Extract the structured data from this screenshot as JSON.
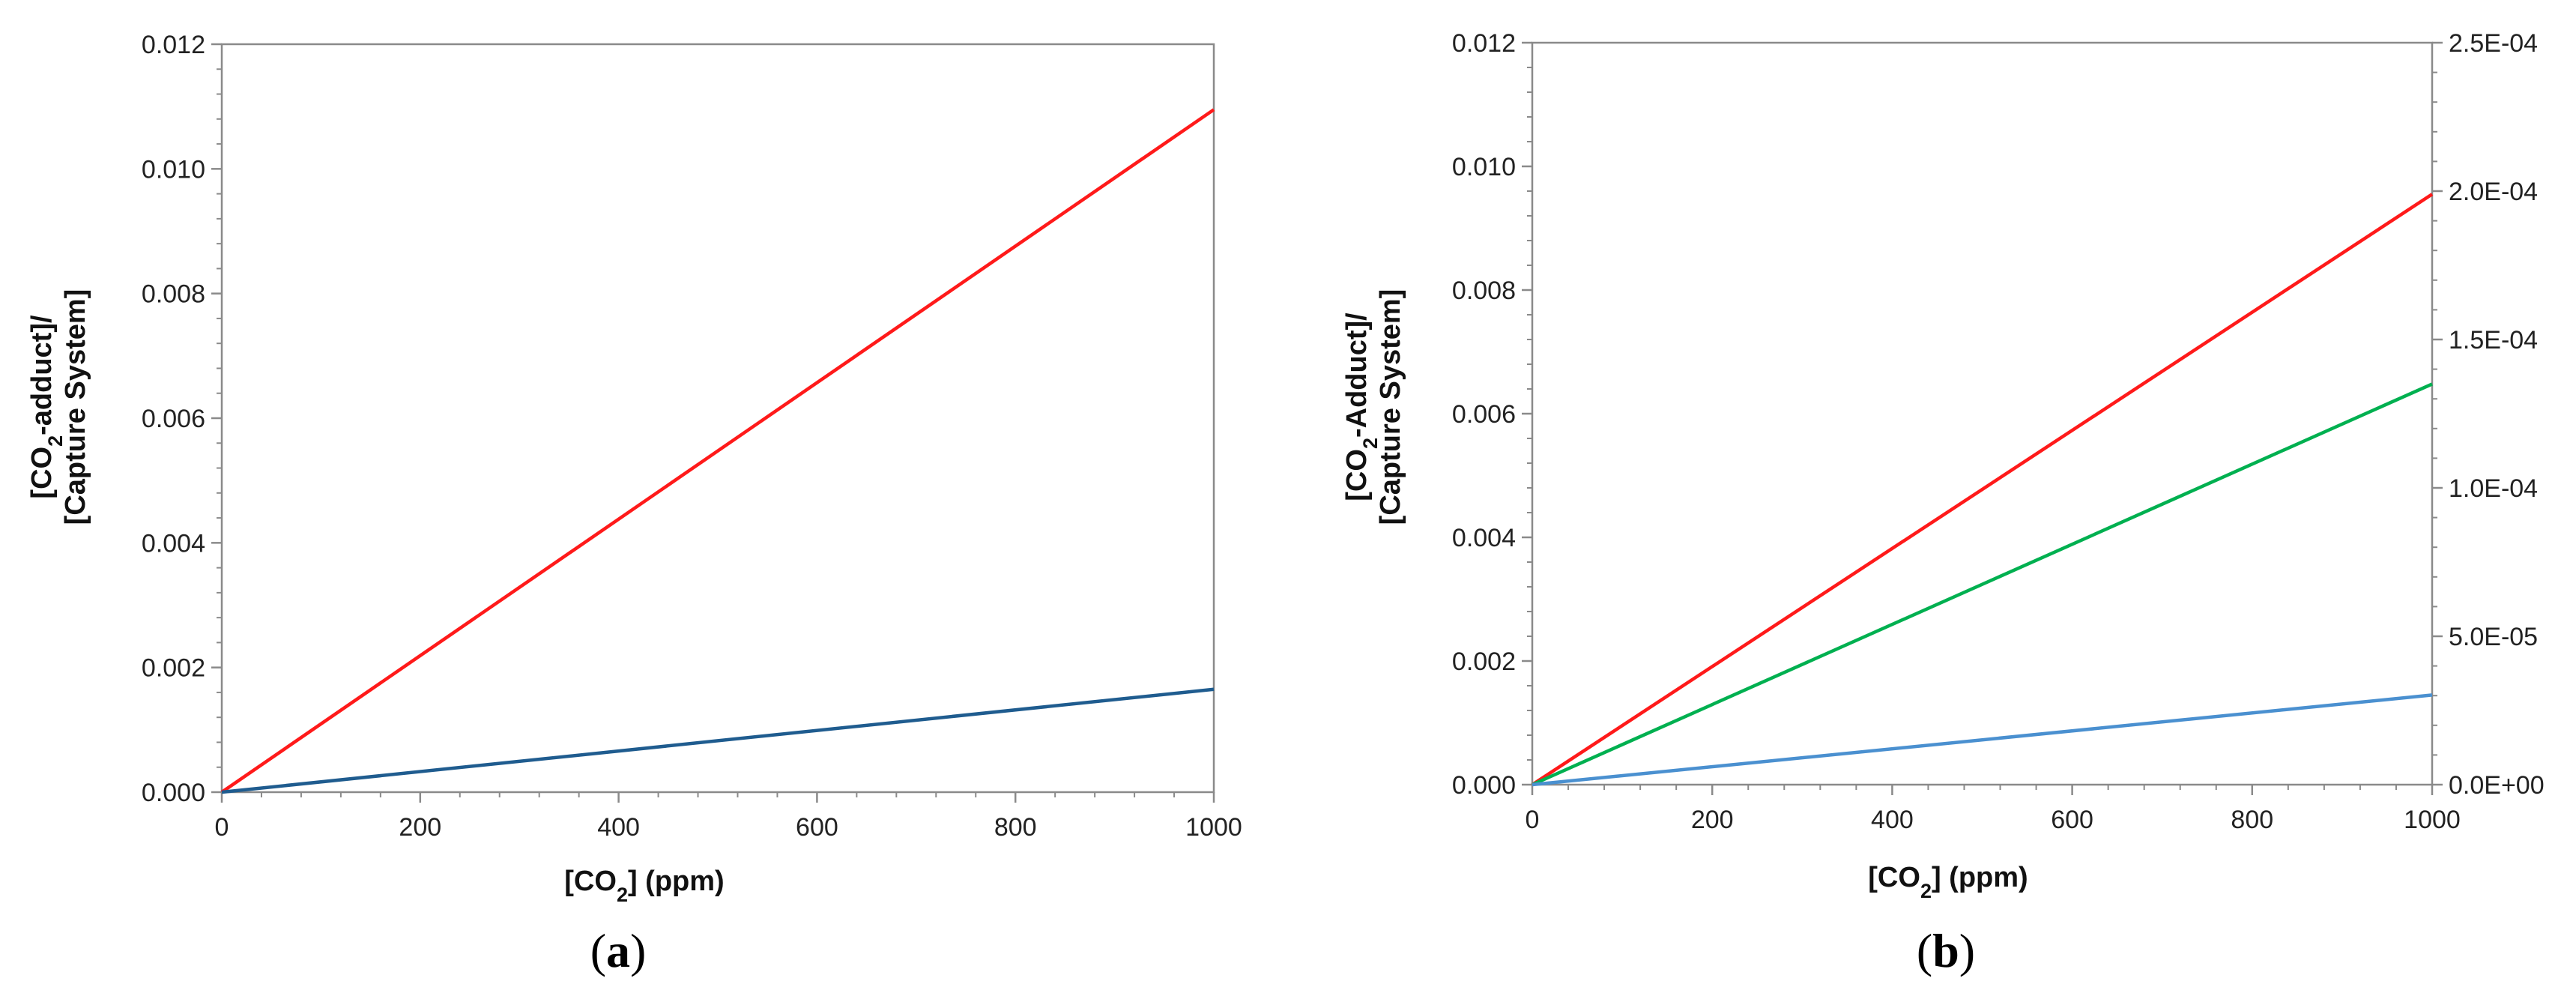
{
  "chart_data": [
    {
      "type": "line",
      "panel_label": "a",
      "xlabel": {
        "prefix": "[CO",
        "sub": "2",
        "suffix": "] (ppm)"
      },
      "ylabel": {
        "line1": {
          "prefix": "[CO",
          "sub": "2",
          "suffix": "-adduct]/"
        },
        "line2": "[Capture System]"
      },
      "xlim": [
        0,
        1000
      ],
      "ylim": [
        0,
        0.012
      ],
      "x_ticks": [
        "0",
        "200",
        "400",
        "600",
        "800",
        "1000"
      ],
      "y_ticks": [
        "0.000",
        "0.002",
        "0.004",
        "0.006",
        "0.008",
        "0.010",
        "0.012"
      ],
      "grid": false,
      "series": [
        {
          "color": "#ff1a1a",
          "axis": "left",
          "x": [
            0,
            1000
          ],
          "y": [
            0,
            0.01095
          ]
        },
        {
          "color": "#1f5c8f",
          "axis": "left",
          "x": [
            0,
            1000
          ],
          "y": [
            0,
            0.00165
          ]
        }
      ]
    },
    {
      "type": "line",
      "panel_label": "b",
      "xlabel": {
        "prefix": "[CO",
        "sub": "2",
        "suffix": "] (ppm)"
      },
      "ylabel": {
        "line1": {
          "prefix": "[CO",
          "sub": "2",
          "suffix": "-Adduct]/"
        },
        "line2": "[Capture System]"
      },
      "xlim": [
        0,
        1000
      ],
      "ylim": [
        0,
        0.012
      ],
      "y2lim": [
        0,
        0.00025
      ],
      "x_ticks": [
        "0",
        "200",
        "400",
        "600",
        "800",
        "1000"
      ],
      "y_ticks": [
        "0.000",
        "0.002",
        "0.004",
        "0.006",
        "0.008",
        "0.010",
        "0.012"
      ],
      "y2_ticks": [
        "0.0E+00",
        "5.0E-05",
        "1.0E-04",
        "1.5E-04",
        "2.0E-04",
        "2.5E-04"
      ],
      "grid": false,
      "series": [
        {
          "color": "#ff1a1a",
          "axis": "left",
          "x": [
            0,
            1000
          ],
          "y": [
            0,
            0.00955
          ]
        },
        {
          "color": "#00b050",
          "axis": "left",
          "x": [
            0,
            1000
          ],
          "y": [
            0,
            0.00648
          ]
        },
        {
          "color": "#4a90d0",
          "axis": "left",
          "x": [
            0,
            1000
          ],
          "y": [
            0,
            0.00145
          ]
        }
      ]
    }
  ]
}
